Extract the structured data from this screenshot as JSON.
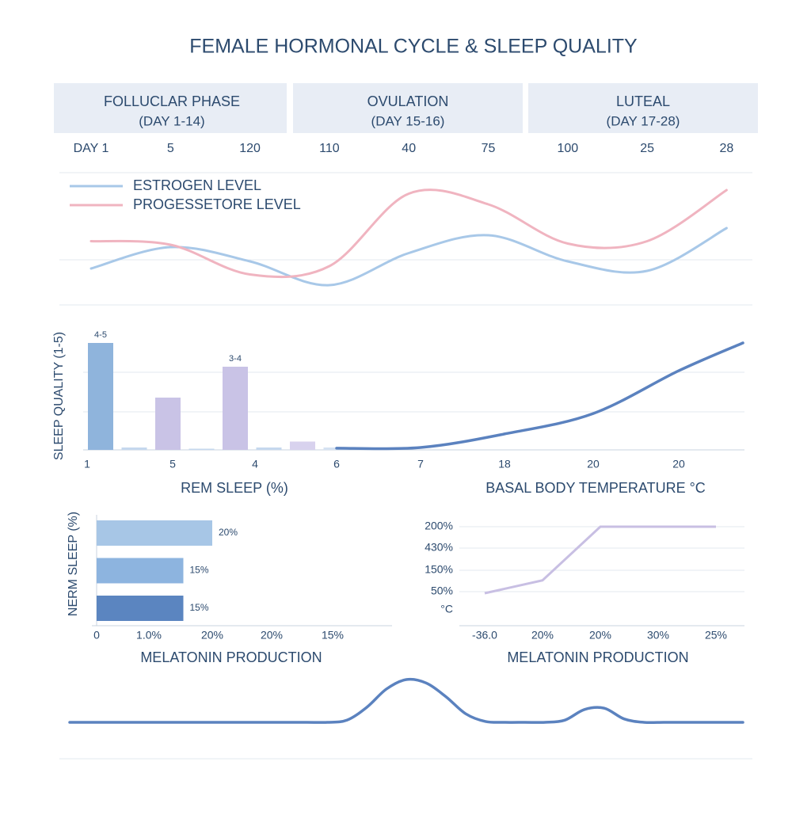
{
  "title": "FEMALE HORMONAL CYCLE & SLEEP QUALITY",
  "phases": [
    {
      "name": "FOLLUCLAR PHASE",
      "days": "(DAY 1-14)"
    },
    {
      "name": "OVULATION",
      "days": "(DAY 15-16)"
    },
    {
      "name": "LUTEAL",
      "days": "(DAY 17-28)"
    }
  ],
  "chart_data": [
    {
      "type": "line",
      "categories": [
        "DAY 1",
        "5",
        "120",
        "110",
        "40",
        "75",
        "100",
        "25",
        "28"
      ],
      "legend": "top-left",
      "series": [
        {
          "name": "ESTROGEN LEVEL",
          "color": "#a8c8e8",
          "values": [
            2.3,
            4.1,
            2.9,
            0.9,
            3.6,
            5.1,
            2.9,
            2.1,
            5.7
          ]
        },
        {
          "name": "PROGESSETORE LEVEL",
          "color": "#f0b4c0",
          "values": [
            4.6,
            4.3,
            1.8,
            2.5,
            8.6,
            7.7,
            4.4,
            4.6,
            8.9
          ]
        }
      ]
    },
    {
      "type": "combo",
      "ylabel": "SLEEP QUALITY (1-5)",
      "categories": [
        "1",
        "5",
        "4",
        "6",
        "7",
        "18",
        "20",
        "20",
        null
      ],
      "bars": {
        "values": [
          4.5,
          0.1,
          2.2,
          0.05,
          3.5,
          0.1,
          0.35,
          0.1
        ],
        "value_labels": [
          "4-5",
          null,
          null,
          null,
          "3-4",
          null,
          null,
          null
        ],
        "colors": [
          "#8fb4dc",
          "#c5d8ee",
          "#c9c3e6",
          "#c5d8ee",
          "#c9c3e6",
          "#c5d8ee",
          "#d8d2ee",
          "#d5e2f2"
        ]
      },
      "line": {
        "color": "#5b82bf",
        "values": [
          null,
          null,
          null,
          0.07,
          0.1,
          0.67,
          1.53,
          3.33,
          4.5
        ]
      },
      "xlabels": [
        "REM SLEEP (%)",
        "BASAL BODY TEMPERATURE °C"
      ]
    },
    {
      "type": "hbar",
      "ylabel": "NERM SLEEP (%)",
      "values": [
        20,
        15,
        15
      ],
      "value_labels": [
        "20%",
        "15%",
        "15%"
      ],
      "colors": [
        "#a7c6e6",
        "#8db4df",
        "#5b85c0"
      ],
      "xtick_labels": [
        "0",
        "1.0%",
        "20%",
        "20%",
        "15%"
      ],
      "xlabel": "MELATONIN PRODUCTION"
    },
    {
      "type": "line",
      "categories": [
        "-36.0",
        "20%",
        "20%",
        "30%",
        "25%"
      ],
      "ytick_labels": [
        "200%",
        "430%",
        "150%",
        "50%",
        "°C"
      ],
      "series": [
        {
          "color": "#c8bfe3",
          "values": [
            45,
            75,
            200,
            200,
            200
          ]
        }
      ],
      "xlabel": "MELATONIN PRODUCTION"
    },
    {
      "type": "wave",
      "color": "#5b82bf",
      "values": [
        0,
        0,
        0,
        0,
        0,
        0,
        0,
        0,
        0,
        0,
        0,
        0,
        0,
        0,
        0.05,
        0.35,
        0.78,
        1.0,
        0.92,
        0.6,
        0.2,
        0.02,
        0,
        0,
        0,
        0.05,
        0.3,
        0.33,
        0.08,
        0,
        0,
        0,
        0,
        0,
        0
      ]
    }
  ]
}
